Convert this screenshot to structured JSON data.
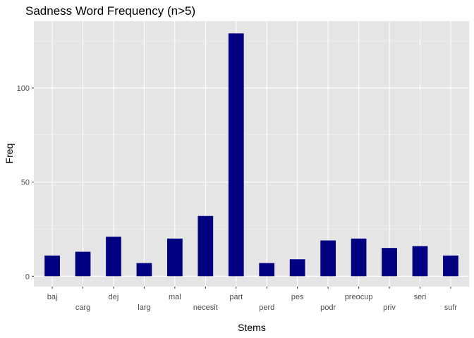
{
  "chart_data": {
    "type": "bar",
    "title": "Sadness Word Frequency (n>5)",
    "xlabel": "Stems",
    "ylabel": "Freq",
    "categories": [
      "baj",
      "carg",
      "dej",
      "larg",
      "mal",
      "necesit",
      "part",
      "perd",
      "pes",
      "podr",
      "preocup",
      "priv",
      "seri",
      "sufr"
    ],
    "values": [
      11,
      13,
      21,
      7,
      20,
      32,
      129,
      7,
      9,
      19,
      20,
      15,
      16,
      11
    ],
    "ylim": [
      -5.5,
      135.5
    ],
    "yticks": [
      0,
      50,
      100
    ],
    "ytick_labels": [
      "0",
      "50",
      "100"
    ],
    "grid": true,
    "x_labels_staggered": true,
    "colors": {
      "bar": "#000080",
      "panel_background": "#e5e5e5",
      "grid_major": "#ffffff",
      "grid_minor": "#f2f2f2",
      "tick_text": "#4d4d4d",
      "tick_mark": "#333333"
    }
  }
}
